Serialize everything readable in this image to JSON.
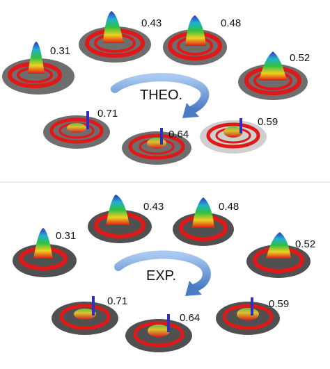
{
  "panels": [
    {
      "title": "THEO.",
      "items": [
        {
          "value": "0.31"
        },
        {
          "value": "0.43"
        },
        {
          "value": "0.48"
        },
        {
          "value": "0.52"
        },
        {
          "value": "0.59"
        },
        {
          "value": "0.64"
        },
        {
          "value": "0.71"
        }
      ]
    },
    {
      "title": "EXP.",
      "items": [
        {
          "value": "0.31"
        },
        {
          "value": "0.43"
        },
        {
          "value": "0.48"
        },
        {
          "value": "0.52"
        },
        {
          "value": "0.59"
        },
        {
          "value": "0.64"
        },
        {
          "value": "0.71"
        }
      ]
    }
  ],
  "colors": {
    "disk": "#707070",
    "ring_red": "#e01818",
    "arrow": "#6a9ad6",
    "light_disk": "#c8c8c8"
  }
}
